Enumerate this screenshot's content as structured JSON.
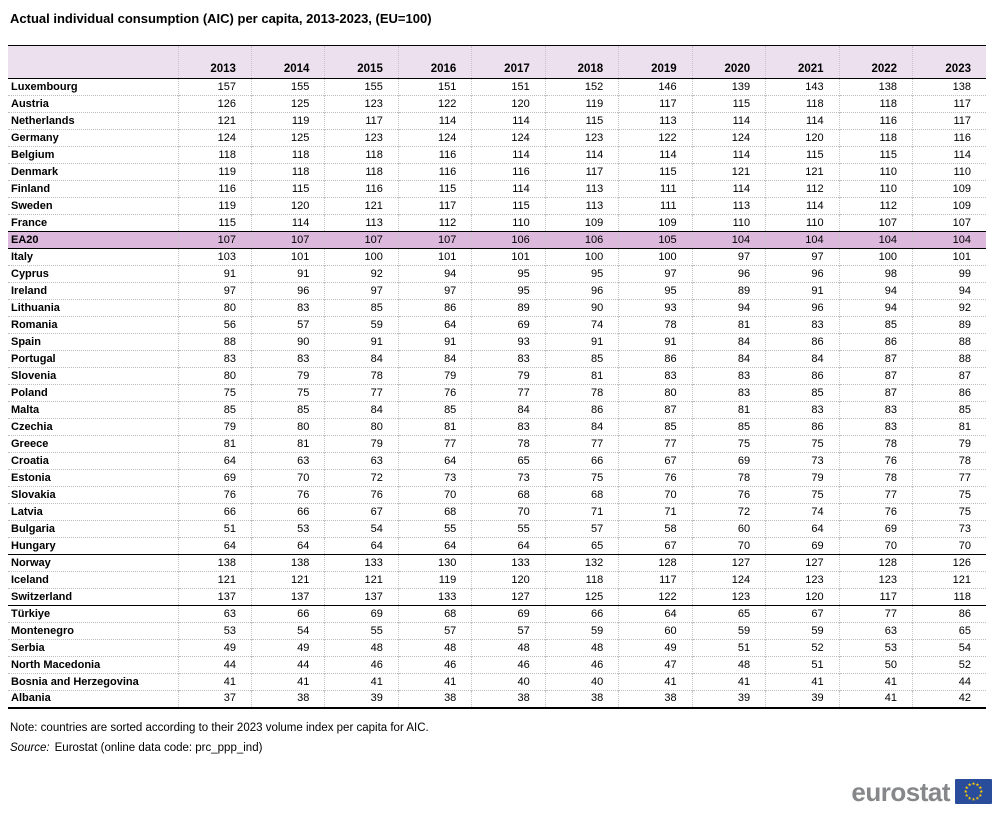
{
  "title": "Actual individual consumption (AIC) per capita, 2013-2023, (EU=100)",
  "chart_data": {
    "type": "table",
    "title": "Actual individual consumption (AIC) per capita, 2013-2023, (EU=100)",
    "columns": [
      "2013",
      "2014",
      "2015",
      "2016",
      "2017",
      "2018",
      "2019",
      "2020",
      "2021",
      "2022",
      "2023"
    ],
    "rows": [
      {
        "name": "Luxembourg",
        "style": "",
        "values": [
          157,
          155,
          155,
          151,
          151,
          152,
          146,
          139,
          143,
          138,
          138
        ]
      },
      {
        "name": "Austria",
        "style": "",
        "values": [
          126,
          125,
          123,
          122,
          120,
          119,
          117,
          115,
          118,
          118,
          117
        ]
      },
      {
        "name": "Netherlands",
        "style": "",
        "values": [
          121,
          119,
          117,
          114,
          114,
          115,
          113,
          114,
          114,
          116,
          117
        ]
      },
      {
        "name": "Germany",
        "style": "",
        "values": [
          124,
          125,
          123,
          124,
          124,
          123,
          122,
          124,
          120,
          118,
          116
        ]
      },
      {
        "name": "Belgium",
        "style": "",
        "values": [
          118,
          118,
          118,
          116,
          114,
          114,
          114,
          114,
          115,
          115,
          114
        ]
      },
      {
        "name": "Denmark",
        "style": "",
        "values": [
          119,
          118,
          118,
          116,
          116,
          117,
          115,
          121,
          121,
          110,
          110
        ]
      },
      {
        "name": "Finland",
        "style": "",
        "values": [
          116,
          115,
          116,
          115,
          114,
          113,
          111,
          114,
          112,
          110,
          109
        ]
      },
      {
        "name": "Sweden",
        "style": "",
        "values": [
          119,
          120,
          121,
          117,
          115,
          113,
          111,
          113,
          114,
          112,
          109
        ]
      },
      {
        "name": "France",
        "style": "",
        "values": [
          115,
          114,
          113,
          112,
          110,
          109,
          109,
          110,
          110,
          107,
          107
        ]
      },
      {
        "name": "EA20",
        "style": "highlight",
        "values": [
          107,
          107,
          107,
          107,
          106,
          106,
          105,
          104,
          104,
          104,
          104
        ]
      },
      {
        "name": "Italy",
        "style": "",
        "values": [
          103,
          101,
          100,
          101,
          101,
          100,
          100,
          97,
          97,
          100,
          101
        ]
      },
      {
        "name": "Cyprus",
        "style": "",
        "values": [
          91,
          91,
          92,
          94,
          95,
          95,
          97,
          96,
          96,
          98,
          99
        ]
      },
      {
        "name": "Ireland",
        "style": "",
        "values": [
          97,
          96,
          97,
          97,
          95,
          96,
          95,
          89,
          91,
          94,
          94
        ]
      },
      {
        "name": "Lithuania",
        "style": "",
        "values": [
          80,
          83,
          85,
          86,
          89,
          90,
          93,
          94,
          96,
          94,
          92
        ]
      },
      {
        "name": "Romania",
        "style": "",
        "values": [
          56,
          57,
          59,
          64,
          69,
          74,
          78,
          81,
          83,
          85,
          89
        ]
      },
      {
        "name": "Spain",
        "style": "",
        "values": [
          88,
          90,
          91,
          91,
          93,
          91,
          91,
          84,
          86,
          86,
          88
        ]
      },
      {
        "name": "Portugal",
        "style": "",
        "values": [
          83,
          83,
          84,
          84,
          83,
          85,
          86,
          84,
          84,
          87,
          88
        ]
      },
      {
        "name": "Slovenia",
        "style": "",
        "values": [
          80,
          79,
          78,
          79,
          79,
          81,
          83,
          83,
          86,
          87,
          87
        ]
      },
      {
        "name": "Poland",
        "style": "",
        "values": [
          75,
          75,
          77,
          76,
          77,
          78,
          80,
          83,
          85,
          87,
          86
        ]
      },
      {
        "name": "Malta",
        "style": "",
        "values": [
          85,
          85,
          84,
          85,
          84,
          86,
          87,
          81,
          83,
          83,
          85
        ]
      },
      {
        "name": "Czechia",
        "style": "",
        "values": [
          79,
          80,
          80,
          81,
          83,
          84,
          85,
          85,
          86,
          83,
          81
        ]
      },
      {
        "name": "Greece",
        "style": "",
        "values": [
          81,
          81,
          79,
          77,
          78,
          77,
          77,
          75,
          75,
          78,
          79
        ]
      },
      {
        "name": "Croatia",
        "style": "",
        "values": [
          64,
          63,
          63,
          64,
          65,
          66,
          67,
          69,
          73,
          76,
          78
        ]
      },
      {
        "name": "Estonia",
        "style": "",
        "values": [
          69,
          70,
          72,
          73,
          73,
          75,
          76,
          78,
          79,
          78,
          77
        ]
      },
      {
        "name": "Slovakia",
        "style": "",
        "values": [
          76,
          76,
          76,
          70,
          68,
          68,
          70,
          76,
          75,
          77,
          75
        ]
      },
      {
        "name": "Latvia",
        "style": "",
        "values": [
          66,
          66,
          67,
          68,
          70,
          71,
          71,
          72,
          74,
          76,
          75
        ]
      },
      {
        "name": "Bulgaria",
        "style": "",
        "values": [
          51,
          53,
          54,
          55,
          55,
          57,
          58,
          60,
          64,
          69,
          73
        ]
      },
      {
        "name": "Hungary",
        "style": "",
        "values": [
          64,
          64,
          64,
          64,
          64,
          65,
          67,
          70,
          69,
          70,
          70
        ]
      },
      {
        "name": "Norway",
        "style": "section-start",
        "values": [
          138,
          138,
          133,
          130,
          133,
          132,
          128,
          127,
          127,
          128,
          126
        ]
      },
      {
        "name": "Iceland",
        "style": "",
        "values": [
          121,
          121,
          121,
          119,
          120,
          118,
          117,
          124,
          123,
          123,
          121
        ]
      },
      {
        "name": "Switzerland",
        "style": "",
        "values": [
          137,
          137,
          137,
          133,
          127,
          125,
          122,
          123,
          120,
          117,
          118
        ]
      },
      {
        "name": "Türkiye",
        "style": "section-start",
        "values": [
          63,
          66,
          69,
          68,
          69,
          66,
          64,
          65,
          67,
          77,
          86
        ]
      },
      {
        "name": "Montenegro",
        "style": "",
        "values": [
          53,
          54,
          55,
          57,
          57,
          59,
          60,
          59,
          59,
          63,
          65
        ]
      },
      {
        "name": "Serbia",
        "style": "",
        "values": [
          49,
          49,
          48,
          48,
          48,
          48,
          49,
          51,
          52,
          53,
          54
        ]
      },
      {
        "name": "North Macedonia",
        "style": "",
        "values": [
          44,
          44,
          46,
          46,
          46,
          46,
          47,
          48,
          51,
          50,
          52
        ]
      },
      {
        "name": "Bosnia and Herzegovina",
        "style": "",
        "values": [
          41,
          41,
          41,
          41,
          40,
          40,
          41,
          41,
          41,
          41,
          44
        ]
      },
      {
        "name": "Albania",
        "style": "",
        "values": [
          37,
          38,
          39,
          38,
          38,
          38,
          38,
          39,
          39,
          41,
          42
        ]
      }
    ],
    "layout": {
      "grid": "dotted row and column separators",
      "highlight_row": "EA20",
      "sections": [
        "EU countries + EA20",
        "EFTA: Norway-Switzerland",
        "Candidates: Türkiye-Albania"
      ]
    }
  },
  "footer": {
    "note": "Note: countries are sorted according to their 2023 volume index per capita for AIC.",
    "source_label": "Source:",
    "source_text": "Eurostat (online data code: prc_ppp_ind)"
  },
  "logo": {
    "text": "eurostat"
  },
  "colors": {
    "header_bg": "#ecdfee",
    "highlight_bg": "#dcb8dc",
    "logo_gray": "#85878a",
    "flag_blue": "#2a4d9b",
    "star_yellow": "#ffcc00"
  }
}
